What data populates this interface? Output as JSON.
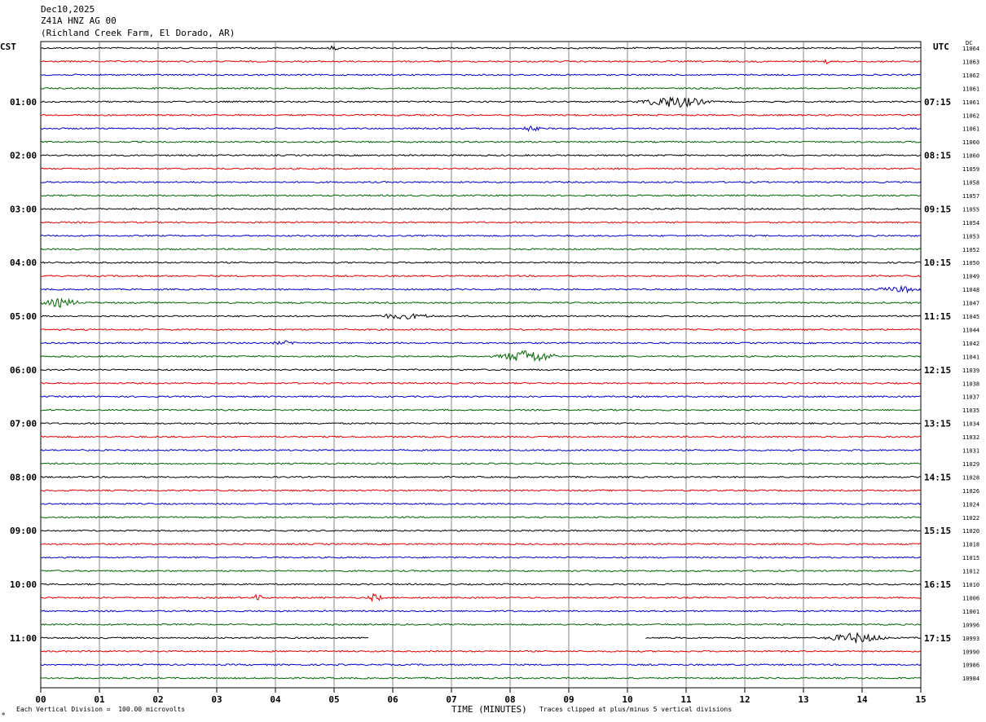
{
  "header": {
    "date": "Dec10,2025",
    "station": "Z41A HNZ AG 00",
    "location": "(Richland Creek Farm, El Dorado, AR)"
  },
  "left_timezone": "CST",
  "right_timezone": "UTC",
  "dc_label": "DC",
  "footer": {
    "scale_note": "Each Vertical Division =  100.00 microvolts",
    "xlabel": "TIME (MINUTES)",
    "clip_note": "Traces clipped at plus/minus 5 vertical divisions",
    "logo_mark": "✲"
  },
  "colors": {
    "trace_cycle": [
      "#000000",
      "#e00000",
      "#0000c8",
      "#006400"
    ],
    "grid": "#888888"
  },
  "chart_data": {
    "type": "line",
    "title": "",
    "xlabel": "TIME (MINUTES)",
    "ylabel": "",
    "xlim": [
      0,
      15
    ],
    "x_ticks": [
      "00",
      "01",
      "02",
      "03",
      "04",
      "05",
      "06",
      "07",
      "08",
      "09",
      "10",
      "11",
      "12",
      "13",
      "14",
      "15"
    ],
    "left_time_labels": [
      "01:00",
      "02:00",
      "03:00",
      "04:00",
      "05:00",
      "06:00",
      "07:00",
      "08:00",
      "09:00",
      "10:00",
      "11:00"
    ],
    "right_time_labels": [
      "07:15",
      "08:15",
      "09:15",
      "10:15",
      "11:15",
      "12:15",
      "13:15",
      "14:15",
      "15:15",
      "16:15",
      "17:15"
    ],
    "trace_dc_offsets": [
      11064,
      11063,
      11062,
      11061,
      11061,
      11062,
      11061,
      11060,
      11060,
      11059,
      11058,
      11057,
      11055,
      11054,
      11053,
      11052,
      11050,
      11049,
      11048,
      11047,
      11045,
      11044,
      11042,
      11041,
      11039,
      11038,
      11037,
      11035,
      11034,
      11032,
      11031,
      11029,
      11028,
      11026,
      11024,
      11022,
      11020,
      11018,
      11015,
      11012,
      11010,
      11006,
      11001,
      10996,
      10993,
      10990,
      10986,
      10984
    ],
    "events": [
      {
        "trace": 0,
        "minute": 5.0,
        "amplitude": 3,
        "duration_min": 0.1
      },
      {
        "trace": 1,
        "minute": 13.4,
        "amplitude": 4,
        "duration_min": 0.05
      },
      {
        "trace": 4,
        "minute": 10.8,
        "amplitude": 7,
        "duration_min": 0.7
      },
      {
        "trace": 6,
        "minute": 8.35,
        "amplitude": 3,
        "duration_min": 0.2
      },
      {
        "trace": 19,
        "minute": 0.35,
        "amplitude": 5,
        "duration_min": 0.4
      },
      {
        "trace": 18,
        "minute": 14.7,
        "amplitude": 3,
        "duration_min": 0.6
      },
      {
        "trace": 20,
        "minute": 6.2,
        "amplitude": 3,
        "duration_min": 0.6
      },
      {
        "trace": 22,
        "minute": 4.2,
        "amplitude": 2,
        "duration_min": 0.3
      },
      {
        "trace": 23,
        "minute": 8.3,
        "amplitude": 8,
        "duration_min": 0.6
      },
      {
        "trace": 41,
        "minute": 3.7,
        "amplitude": 4,
        "duration_min": 0.1
      },
      {
        "trace": 41,
        "minute": 5.7,
        "amplitude": 5,
        "duration_min": 0.15
      },
      {
        "trace": 44,
        "minute": 13.9,
        "amplitude": 6,
        "duration_min": 0.6
      }
    ],
    "gaps": [
      {
        "trace": 44,
        "from_minute": 5.6,
        "to_minute": 10.3
      }
    ]
  }
}
